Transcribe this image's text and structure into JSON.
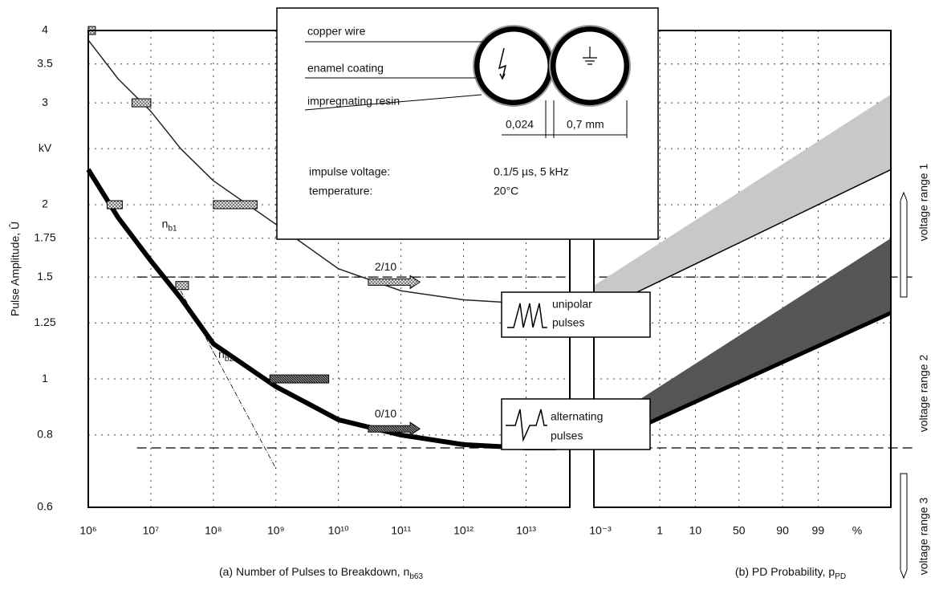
{
  "chart_data": [
    {
      "type": "line",
      "xscale": "log",
      "yscale": "log",
      "xlim": [
        1000000,
        50000000000000
      ],
      "ylim": [
        0.6,
        4
      ],
      "xticks": [
        {
          "value": 1000000,
          "label": "10⁶"
        },
        {
          "value": 10000000,
          "label": "10⁷"
        },
        {
          "value": 100000000,
          "label": "10⁸"
        },
        {
          "value": 1000000000,
          "label": "10⁹"
        },
        {
          "value": 10000000000,
          "label": "10¹⁰"
        },
        {
          "value": 100000000000,
          "label": "10¹¹"
        },
        {
          "value": 1000000000000,
          "label": "10¹²"
        },
        {
          "value": 10000000000000,
          "label": "10¹³"
        }
      ],
      "yticks": [
        0.6,
        0.8,
        1,
        1.25,
        1.5,
        1.75,
        2,
        {
          "value": 2.5,
          "label": "kV"
        },
        3,
        3.5,
        4
      ],
      "grid": true,
      "ylabel": "Pulse Amplitude, Û",
      "xlabel": {
        "text": "(a) Number of Pulses to Breakdown, n",
        "sub": "b63"
      },
      "series": [
        {
          "name": "2/10",
          "color": "#222",
          "width": 1.5,
          "x": [
            1000000,
            3000000,
            10000000,
            30000000,
            100000000,
            1000000000,
            10000000000,
            100000000000,
            1000000000000,
            10000000000000,
            30000000000000
          ],
          "values": [
            3.85,
            3.3,
            2.9,
            2.5,
            2.2,
            1.85,
            1.55,
            1.42,
            1.37,
            1.35,
            1.35
          ],
          "arrow": {
            "x": [
              30000000000,
              200000000000
            ],
            "y": 1.47
          }
        },
        {
          "name": "0/10",
          "color": "#000",
          "width": 6,
          "x": [
            1000000,
            3000000,
            10000000,
            30000000,
            100000000,
            1000000000,
            10000000000,
            100000000000,
            1000000000000,
            10000000000000,
            30000000000000
          ],
          "values": [
            2.3,
            1.9,
            1.6,
            1.38,
            1.15,
            0.97,
            0.85,
            0.8,
            0.77,
            0.76,
            0.76
          ],
          "arrow": {
            "x": [
              30000000000,
              200000000000
            ],
            "y": 0.82
          }
        }
      ],
      "ranges": [
        {
          "x": [
            1000000,
            1300000
          ],
          "y": 4
        },
        {
          "x": [
            5000000,
            10000000
          ],
          "y": 3
        },
        {
          "x": [
            100000000,
            500000000
          ],
          "y": 2
        },
        {
          "x": [
            2000000,
            3500000
          ],
          "y": 2
        },
        {
          "x": [
            25000000,
            40000000
          ],
          "y": 1.45
        },
        {
          "x": [
            800000000,
            7000000000
          ],
          "y": 1
        }
      ],
      "tangent": {
        "x": [
          30000000,
          1000000000
        ],
        "values": [
          1.42,
          0.7
        ]
      },
      "hlines": [
        {
          "x0": 6000000,
          "y": 1.5
        },
        {
          "x0": 6000000,
          "y": 0.76
        }
      ],
      "annotations": [
        {
          "text": "n",
          "sub": "b1",
          "x": 15000000,
          "y": 1.85
        },
        {
          "text": "n",
          "sub": "b2",
          "x": 120000000,
          "y": 1.1
        }
      ]
    },
    {
      "type": "band",
      "xscale": "probability",
      "xlim": [
        0.001,
        99.9996
      ],
      "xticks": [
        {
          "value": 0.001,
          "label": "10⁻³"
        },
        1,
        10,
        50,
        90,
        99
      ],
      "xunit": "%",
      "grid": true,
      "xlabel": {
        "text": "(b) PD Probability, p",
        "sub": "PD"
      },
      "series": [
        {
          "color": "#c8c8c8",
          "x": [
            0.001,
            99.9996
          ],
          "lower": [
            1.3,
            2.3
          ],
          "upper": [
            1.45,
            3.1
          ]
        },
        {
          "color": "#555",
          "x": [
            0.001,
            99.9996
          ],
          "lower": [
            0.76,
            1.3
          ],
          "upper": [
            0.82,
            1.75
          ]
        }
      ],
      "pulse_boxes": [
        {
          "lines": [
            "unipolar",
            "pulses"
          ]
        },
        {
          "lines": [
            "alternating",
            "pulses"
          ]
        }
      ],
      "voltage_ranges": [
        "voltage range 1",
        "voltage range 2",
        "voltage range 3"
      ]
    }
  ],
  "inset": {
    "labels": [
      "copper wire",
      "enamel coating",
      "impregnating resin"
    ],
    "dimensions": [
      "0,024",
      "0,7 mm"
    ],
    "conditions": [
      [
        "impulse voltage:",
        "0.1/5 µs, 5 kHz"
      ],
      [
        "temperature:",
        "20°C"
      ]
    ]
  }
}
